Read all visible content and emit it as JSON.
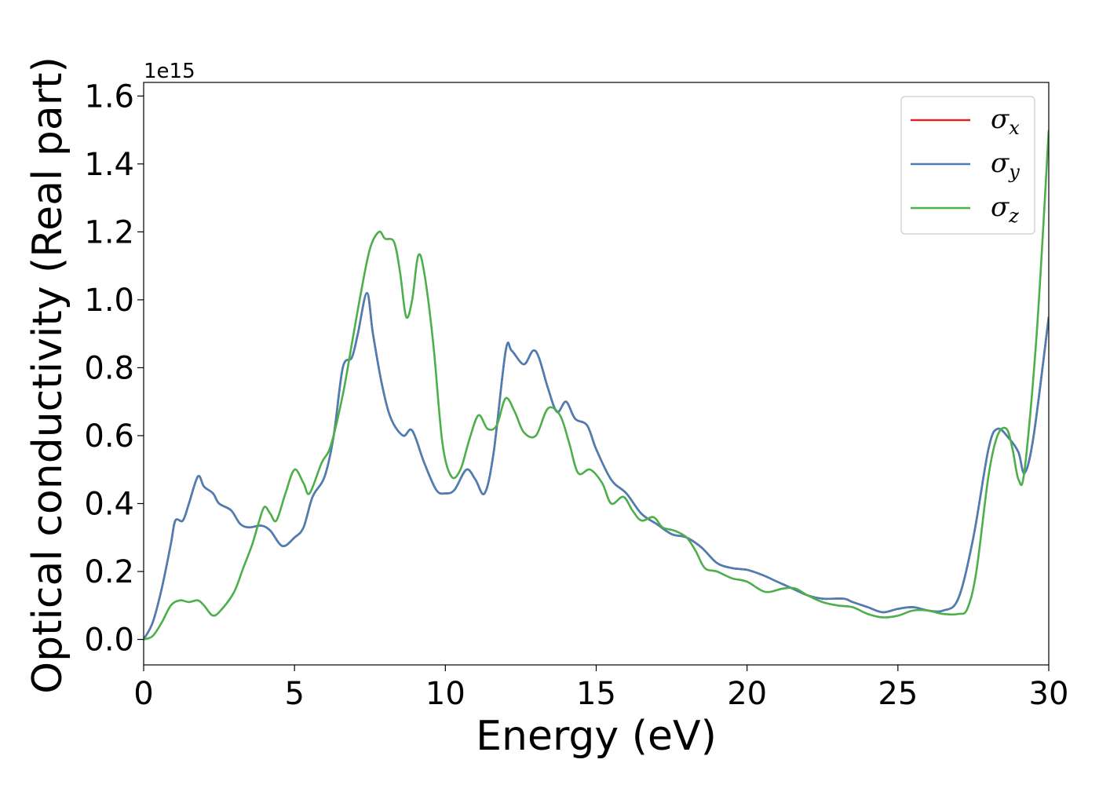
{
  "chart_data": {
    "type": "line",
    "xlabel": "Energy (eV)",
    "ylabel": "Optical conductivity (Real part)",
    "y_offset_label": "1e15",
    "xlim": [
      0,
      30
    ],
    "ylim": [
      -0.075,
      1.64
    ],
    "x_ticks": [
      0,
      5,
      10,
      15,
      20,
      25,
      30
    ],
    "x_tick_labels": [
      "0",
      "5",
      "10",
      "15",
      "20",
      "25",
      "30"
    ],
    "y_ticks": [
      0.0,
      0.2,
      0.4,
      0.6,
      0.8,
      1.0,
      1.2,
      1.4,
      1.6
    ],
    "y_tick_labels": [
      "0.0",
      "0.2",
      "0.4",
      "0.6",
      "0.8",
      "1.0",
      "1.2",
      "1.4",
      "1.6"
    ],
    "grid": false,
    "legend_position": "top-right",
    "series": [
      {
        "name": "σx",
        "base": "σ",
        "sub": "x",
        "color": "#d62728",
        "points": [
          [
            0,
            0
          ],
          [
            0.3,
            0.05
          ],
          [
            0.6,
            0.15
          ],
          [
            0.9,
            0.28
          ],
          [
            1.05,
            0.35
          ],
          [
            1.3,
            0.35
          ],
          [
            1.5,
            0.4
          ],
          [
            1.8,
            0.48
          ],
          [
            2.0,
            0.45
          ],
          [
            2.3,
            0.43
          ],
          [
            2.5,
            0.4
          ],
          [
            2.9,
            0.38
          ],
          [
            3.2,
            0.34
          ],
          [
            3.5,
            0.33
          ],
          [
            3.9,
            0.335
          ],
          [
            4.2,
            0.32
          ],
          [
            4.6,
            0.275
          ],
          [
            5.0,
            0.3
          ],
          [
            5.3,
            0.33
          ],
          [
            5.6,
            0.42
          ],
          [
            6.0,
            0.48
          ],
          [
            6.3,
            0.6
          ],
          [
            6.6,
            0.8
          ],
          [
            6.9,
            0.83
          ],
          [
            7.1,
            0.9
          ],
          [
            7.4,
            1.02
          ],
          [
            7.6,
            0.9
          ],
          [
            7.9,
            0.75
          ],
          [
            8.2,
            0.65
          ],
          [
            8.6,
            0.6
          ],
          [
            8.9,
            0.615
          ],
          [
            9.3,
            0.52
          ],
          [
            9.7,
            0.44
          ],
          [
            10.0,
            0.43
          ],
          [
            10.3,
            0.44
          ],
          [
            10.7,
            0.5
          ],
          [
            11.0,
            0.47
          ],
          [
            11.3,
            0.43
          ],
          [
            11.6,
            0.55
          ],
          [
            12.0,
            0.85
          ],
          [
            12.2,
            0.85
          ],
          [
            12.6,
            0.81
          ],
          [
            12.9,
            0.85
          ],
          [
            13.1,
            0.83
          ],
          [
            13.4,
            0.74
          ],
          [
            13.7,
            0.67
          ],
          [
            14.0,
            0.7
          ],
          [
            14.3,
            0.65
          ],
          [
            14.7,
            0.63
          ],
          [
            15.0,
            0.56
          ],
          [
            15.5,
            0.47
          ],
          [
            16.0,
            0.43
          ],
          [
            16.5,
            0.37
          ],
          [
            17.0,
            0.34
          ],
          [
            17.5,
            0.31
          ],
          [
            18.0,
            0.3
          ],
          [
            18.5,
            0.27
          ],
          [
            19.0,
            0.225
          ],
          [
            19.5,
            0.21
          ],
          [
            20.0,
            0.205
          ],
          [
            20.5,
            0.19
          ],
          [
            21.0,
            0.17
          ],
          [
            21.5,
            0.15
          ],
          [
            22.0,
            0.13
          ],
          [
            22.5,
            0.12
          ],
          [
            23.2,
            0.12
          ],
          [
            23.5,
            0.11
          ],
          [
            24.0,
            0.095
          ],
          [
            24.5,
            0.08
          ],
          [
            25.0,
            0.09
          ],
          [
            25.5,
            0.095
          ],
          [
            26.0,
            0.085
          ],
          [
            26.5,
            0.085
          ],
          [
            27.0,
            0.12
          ],
          [
            27.5,
            0.3
          ],
          [
            28.0,
            0.56
          ],
          [
            28.3,
            0.62
          ],
          [
            28.7,
            0.59
          ],
          [
            29.0,
            0.55
          ],
          [
            29.2,
            0.49
          ],
          [
            29.5,
            0.6
          ],
          [
            30.0,
            0.95
          ]
        ]
      },
      {
        "name": "σy",
        "base": "σ",
        "sub": "y",
        "color": "#4a7fb5",
        "points": [
          [
            0,
            0
          ],
          [
            0.3,
            0.05
          ],
          [
            0.6,
            0.15
          ],
          [
            0.9,
            0.28
          ],
          [
            1.05,
            0.35
          ],
          [
            1.3,
            0.35
          ],
          [
            1.5,
            0.4
          ],
          [
            1.8,
            0.48
          ],
          [
            2.0,
            0.45
          ],
          [
            2.3,
            0.43
          ],
          [
            2.5,
            0.4
          ],
          [
            2.9,
            0.38
          ],
          [
            3.2,
            0.34
          ],
          [
            3.5,
            0.33
          ],
          [
            3.9,
            0.335
          ],
          [
            4.2,
            0.32
          ],
          [
            4.6,
            0.275
          ],
          [
            5.0,
            0.3
          ],
          [
            5.3,
            0.33
          ],
          [
            5.6,
            0.42
          ],
          [
            6.0,
            0.48
          ],
          [
            6.3,
            0.6
          ],
          [
            6.6,
            0.8
          ],
          [
            6.9,
            0.83
          ],
          [
            7.1,
            0.9
          ],
          [
            7.4,
            1.02
          ],
          [
            7.6,
            0.9
          ],
          [
            7.9,
            0.75
          ],
          [
            8.2,
            0.65
          ],
          [
            8.6,
            0.6
          ],
          [
            8.9,
            0.615
          ],
          [
            9.3,
            0.52
          ],
          [
            9.7,
            0.44
          ],
          [
            10.0,
            0.43
          ],
          [
            10.3,
            0.44
          ],
          [
            10.7,
            0.5
          ],
          [
            11.0,
            0.47
          ],
          [
            11.3,
            0.43
          ],
          [
            11.6,
            0.55
          ],
          [
            12.0,
            0.85
          ],
          [
            12.2,
            0.85
          ],
          [
            12.6,
            0.81
          ],
          [
            12.9,
            0.85
          ],
          [
            13.1,
            0.83
          ],
          [
            13.4,
            0.74
          ],
          [
            13.7,
            0.67
          ],
          [
            14.0,
            0.7
          ],
          [
            14.3,
            0.65
          ],
          [
            14.7,
            0.63
          ],
          [
            15.0,
            0.56
          ],
          [
            15.5,
            0.47
          ],
          [
            16.0,
            0.43
          ],
          [
            16.5,
            0.37
          ],
          [
            17.0,
            0.34
          ],
          [
            17.5,
            0.31
          ],
          [
            18.0,
            0.3
          ],
          [
            18.5,
            0.27
          ],
          [
            19.0,
            0.225
          ],
          [
            19.5,
            0.21
          ],
          [
            20.0,
            0.205
          ],
          [
            20.5,
            0.19
          ],
          [
            21.0,
            0.17
          ],
          [
            21.5,
            0.15
          ],
          [
            22.0,
            0.13
          ],
          [
            22.5,
            0.12
          ],
          [
            23.2,
            0.12
          ],
          [
            23.5,
            0.11
          ],
          [
            24.0,
            0.095
          ],
          [
            24.5,
            0.08
          ],
          [
            25.0,
            0.09
          ],
          [
            25.5,
            0.095
          ],
          [
            26.0,
            0.085
          ],
          [
            26.5,
            0.085
          ],
          [
            27.0,
            0.12
          ],
          [
            27.5,
            0.3
          ],
          [
            28.0,
            0.56
          ],
          [
            28.3,
            0.62
          ],
          [
            28.7,
            0.59
          ],
          [
            29.0,
            0.55
          ],
          [
            29.2,
            0.49
          ],
          [
            29.5,
            0.6
          ],
          [
            30.0,
            0.95
          ]
        ]
      },
      {
        "name": "σz",
        "base": "σ",
        "sub": "z",
        "color": "#4daf4a",
        "points": [
          [
            0,
            0
          ],
          [
            0.3,
            0.01
          ],
          [
            0.6,
            0.05
          ],
          [
            0.9,
            0.1
          ],
          [
            1.2,
            0.115
          ],
          [
            1.5,
            0.11
          ],
          [
            1.8,
            0.115
          ],
          [
            2.0,
            0.1
          ],
          [
            2.3,
            0.07
          ],
          [
            2.6,
            0.09
          ],
          [
            3.0,
            0.14
          ],
          [
            3.3,
            0.21
          ],
          [
            3.6,
            0.28
          ],
          [
            3.8,
            0.34
          ],
          [
            4.0,
            0.39
          ],
          [
            4.2,
            0.37
          ],
          [
            4.4,
            0.35
          ],
          [
            4.7,
            0.43
          ],
          [
            5.0,
            0.5
          ],
          [
            5.3,
            0.46
          ],
          [
            5.5,
            0.43
          ],
          [
            5.9,
            0.52
          ],
          [
            6.2,
            0.57
          ],
          [
            6.6,
            0.72
          ],
          [
            6.9,
            0.87
          ],
          [
            7.2,
            1.02
          ],
          [
            7.5,
            1.15
          ],
          [
            7.8,
            1.2
          ],
          [
            8.0,
            1.18
          ],
          [
            8.3,
            1.17
          ],
          [
            8.5,
            1.08
          ],
          [
            8.7,
            0.95
          ],
          [
            8.9,
            1.0
          ],
          [
            9.1,
            1.13
          ],
          [
            9.3,
            1.08
          ],
          [
            9.6,
            0.87
          ],
          [
            9.9,
            0.58
          ],
          [
            10.2,
            0.48
          ],
          [
            10.5,
            0.5
          ],
          [
            10.8,
            0.59
          ],
          [
            11.1,
            0.66
          ],
          [
            11.4,
            0.62
          ],
          [
            11.7,
            0.63
          ],
          [
            12.0,
            0.71
          ],
          [
            12.3,
            0.67
          ],
          [
            12.6,
            0.61
          ],
          [
            13.0,
            0.6
          ],
          [
            13.4,
            0.68
          ],
          [
            13.8,
            0.66
          ],
          [
            14.1,
            0.58
          ],
          [
            14.4,
            0.49
          ],
          [
            14.8,
            0.5
          ],
          [
            15.2,
            0.46
          ],
          [
            15.5,
            0.4
          ],
          [
            15.9,
            0.42
          ],
          [
            16.2,
            0.38
          ],
          [
            16.5,
            0.35
          ],
          [
            16.9,
            0.36
          ],
          [
            17.2,
            0.33
          ],
          [
            17.6,
            0.32
          ],
          [
            18.0,
            0.3
          ],
          [
            18.3,
            0.26
          ],
          [
            18.6,
            0.21
          ],
          [
            19.0,
            0.2
          ],
          [
            19.5,
            0.18
          ],
          [
            20.0,
            0.17
          ],
          [
            20.6,
            0.14
          ],
          [
            21.2,
            0.15
          ],
          [
            21.6,
            0.15
          ],
          [
            22.0,
            0.13
          ],
          [
            22.5,
            0.11
          ],
          [
            23.0,
            0.1
          ],
          [
            23.5,
            0.095
          ],
          [
            24.0,
            0.075
          ],
          [
            24.5,
            0.065
          ],
          [
            25.0,
            0.07
          ],
          [
            25.5,
            0.085
          ],
          [
            26.0,
            0.085
          ],
          [
            26.5,
            0.075
          ],
          [
            27.0,
            0.075
          ],
          [
            27.3,
            0.09
          ],
          [
            27.6,
            0.2
          ],
          [
            28.0,
            0.48
          ],
          [
            28.3,
            0.6
          ],
          [
            28.6,
            0.62
          ],
          [
            28.8,
            0.56
          ],
          [
            29.0,
            0.47
          ],
          [
            29.2,
            0.5
          ],
          [
            29.6,
            0.9
          ],
          [
            30.0,
            1.5
          ]
        ]
      }
    ]
  }
}
